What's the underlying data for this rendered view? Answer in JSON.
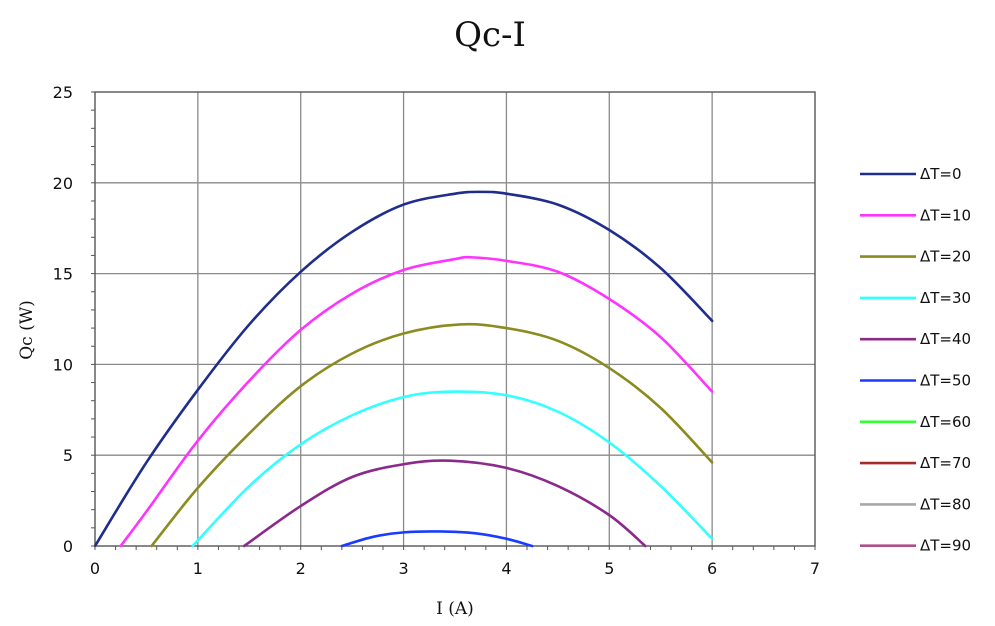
{
  "chart_data": {
    "type": "line",
    "title": "Qc-I",
    "xlabel": "I (A)",
    "ylabel": "Qc (W)",
    "xlim": [
      0,
      7
    ],
    "ylim": [
      0,
      25
    ],
    "x_ticks": [
      "0",
      "1",
      "2",
      "3",
      "4",
      "5",
      "6",
      "7"
    ],
    "y_ticks": [
      "0",
      "5",
      "10",
      "15",
      "20",
      "25"
    ],
    "grid": true,
    "legend_position": "right",
    "series": [
      {
        "name": "ΔT=0",
        "color": "#1f2d8c",
        "x": [
          0,
          0.5,
          1,
          1.5,
          2,
          2.5,
          3,
          3.5,
          3.75,
          4,
          4.5,
          5,
          5.5,
          6
        ],
        "y": [
          0,
          4.6,
          8.6,
          12.2,
          15.1,
          17.3,
          18.8,
          19.4,
          19.5,
          19.4,
          18.8,
          17.4,
          15.3,
          12.4
        ]
      },
      {
        "name": "ΔT=10",
        "color": "#ff33ff",
        "x": [
          0.25,
          0.5,
          1,
          1.5,
          2,
          2.5,
          3,
          3.5,
          3.65,
          4,
          4.5,
          5,
          5.5,
          6
        ],
        "y": [
          0,
          1.9,
          5.8,
          9.1,
          11.9,
          13.9,
          15.2,
          15.8,
          15.9,
          15.7,
          15.1,
          13.6,
          11.5,
          8.5
        ]
      },
      {
        "name": "ΔT=20",
        "color": "#8b8b20",
        "x": [
          0.55,
          1,
          1.5,
          2,
          2.5,
          3,
          3.55,
          4,
          4.5,
          5,
          5.5,
          6
        ],
        "y": [
          0,
          3.2,
          6.2,
          8.8,
          10.6,
          11.7,
          12.2,
          12.0,
          11.3,
          9.8,
          7.6,
          4.6
        ]
      },
      {
        "name": "ΔT=30",
        "color": "#33ffff",
        "x": [
          0.95,
          1.5,
          2,
          2.5,
          3,
          3.45,
          4,
          4.5,
          5,
          5.5,
          6
        ],
        "y": [
          0,
          3.3,
          5.6,
          7.2,
          8.2,
          8.5,
          8.3,
          7.4,
          5.7,
          3.3,
          0.4
        ]
      },
      {
        "name": "ΔT=40",
        "color": "#8b2a8b",
        "x": [
          1.45,
          2,
          2.5,
          3,
          3.45,
          4,
          4.5,
          5,
          5.35
        ],
        "y": [
          0,
          2.2,
          3.8,
          4.5,
          4.7,
          4.3,
          3.3,
          1.7,
          0
        ]
      },
      {
        "name": "ΔT=50",
        "color": "#1a3cff",
        "x": [
          2.4,
          2.7,
          3,
          3.35,
          3.7,
          4,
          4.25
        ],
        "y": [
          0,
          0.5,
          0.75,
          0.8,
          0.7,
          0.4,
          0
        ]
      },
      {
        "name": "ΔT=60",
        "color": "#33ff33",
        "x": [],
        "y": []
      },
      {
        "name": "ΔT=70",
        "color": "#a52a2a",
        "x": [],
        "y": []
      },
      {
        "name": "ΔT=80",
        "color": "#a8a8a8",
        "x": [],
        "y": []
      },
      {
        "name": "ΔT=90",
        "color": "#b0508a",
        "x": [],
        "y": []
      }
    ]
  }
}
